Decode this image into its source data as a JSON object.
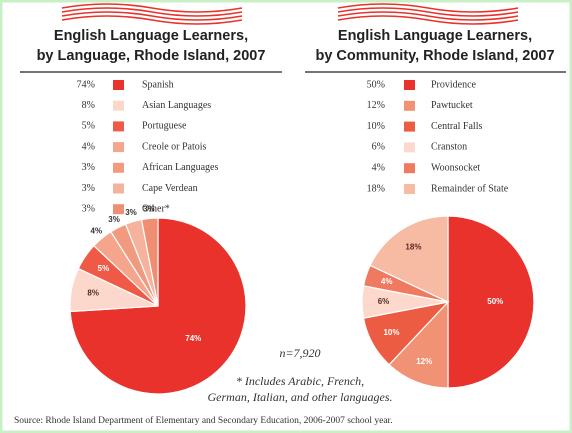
{
  "chart_data": [
    {
      "type": "pie",
      "title": [
        "English Language Learners,",
        "by Language, Rhode Island, 2007"
      ],
      "categories": [
        "Spanish",
        "Asian Languages",
        "Portuguese",
        "Creole or Patois",
        "African Languages",
        "Cape Verdean",
        "Other*"
      ],
      "values": [
        74,
        8,
        5,
        4,
        3,
        3,
        3
      ],
      "value_labels": [
        "74%",
        "8%",
        "5%",
        "4%",
        "3%",
        "3%",
        "3%"
      ],
      "colors": [
        "#e8322b",
        "#fbd7cc",
        "#ee5a45",
        "#f4a58c",
        "#f29a80",
        "#f5b29c",
        "#f08e73"
      ],
      "annotations": [
        "n=7,920",
        "* Includes Arabic, French,",
        "German, Italian, and other languages."
      ]
    },
    {
      "type": "pie",
      "title": [
        "English Language Learners,",
        "by Community, Rhode Island, 2007"
      ],
      "categories": [
        "Providence",
        "Pawtucket",
        "Central Falls",
        "Cranston",
        "Woonsocket",
        "Remainder of State"
      ],
      "values": [
        50,
        12,
        10,
        6,
        4,
        18
      ],
      "value_labels": [
        "50%",
        "12%",
        "10%",
        "6%",
        "4%",
        "18%"
      ],
      "colors": [
        "#e8322b",
        "#f19274",
        "#ec5c43",
        "#fcd9cc",
        "#ef7a60",
        "#f7baa3"
      ]
    }
  ],
  "source": "Source: Rhode Island Department of Elementary and Secondary Education, 2006-2007 school year."
}
